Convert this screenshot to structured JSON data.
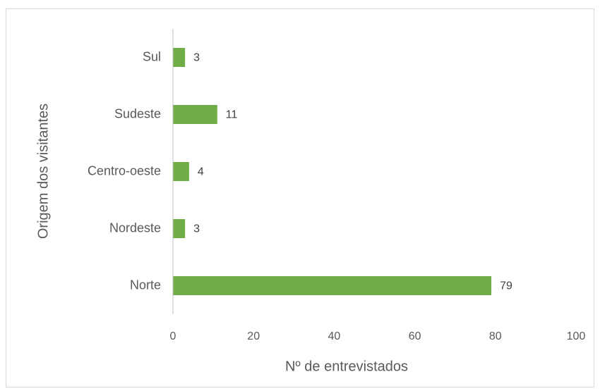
{
  "chart_data": {
    "type": "barh",
    "categories": [
      "Norte",
      "Nordeste",
      "Centro-oeste",
      "Sudeste",
      "Sul"
    ],
    "values": [
      79,
      3,
      4,
      11,
      3
    ],
    "color": "#70ad47",
    "xlim": [
      0,
      100
    ],
    "xticks": [
      0,
      20,
      40,
      60,
      80,
      100
    ],
    "xlabel": "Nº de entrevistados",
    "ylabel": "Origem dos visitantes",
    "grid": false
  }
}
